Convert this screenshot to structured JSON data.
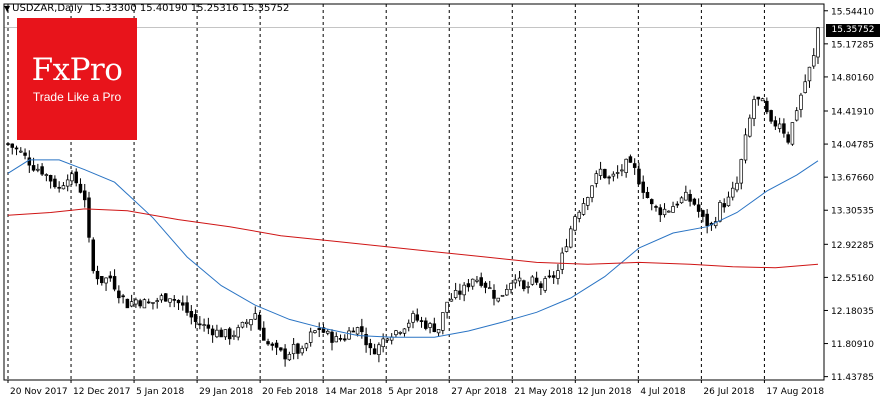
{
  "header": {
    "symbol": "USDZAR,Daily",
    "ohlc": "15.33300 15.40190 15.25316 15.35752"
  },
  "logo": {
    "brand": "FxPro",
    "tagline": "Trade Like a Pro"
  },
  "price_label": "15.35752",
  "chart_data": {
    "type": "candlestick",
    "title": "USDZAR,Daily",
    "y_ticks": [
      "15.54410",
      "15.17285",
      "14.80160",
      "14.41910",
      "14.04785",
      "13.67660",
      "13.30535",
      "12.92285",
      "12.55160",
      "12.18035",
      "11.80910",
      "11.43785"
    ],
    "x_ticks": [
      "20 Nov 2017",
      "12 Dec 2017",
      "5 Jan 2018",
      "29 Jan 2018",
      "20 Feb 2018",
      "14 Mar 2018",
      "5 Apr 2018",
      "27 Apr 2018",
      "21 May 2018",
      "12 Jun 2018",
      "4 Jul 2018",
      "26 Jul 2018",
      "17 Aug 2018"
    ],
    "ylim": [
      11.4,
      15.62
    ],
    "last_price": 15.35752,
    "close_points": [
      [
        0,
        14.05
      ],
      [
        3,
        13.95
      ],
      [
        6,
        13.8
      ],
      [
        8,
        13.75
      ],
      [
        10,
        13.65
      ],
      [
        12,
        13.55
      ],
      [
        14,
        13.7
      ],
      [
        16,
        13.62
      ],
      [
        18,
        13.45
      ],
      [
        19,
        12.95
      ],
      [
        20,
        12.62
      ],
      [
        22,
        12.52
      ],
      [
        24,
        12.55
      ],
      [
        26,
        12.38
      ],
      [
        28,
        12.25
      ],
      [
        30,
        12.3
      ],
      [
        33,
        12.25
      ],
      [
        36,
        12.32
      ],
      [
        38,
        12.35
      ],
      [
        41,
        12.22
      ],
      [
        44,
        12.05
      ],
      [
        47,
        11.98
      ],
      [
        50,
        11.92
      ],
      [
        52,
        11.9
      ],
      [
        54,
        11.95
      ],
      [
        56,
        12.05
      ],
      [
        58,
        12.15
      ],
      [
        59,
        11.98
      ],
      [
        61,
        11.8
      ],
      [
        63,
        11.72
      ],
      [
        65,
        11.68
      ],
      [
        67,
        11.75
      ],
      [
        69,
        11.7
      ],
      [
        71,
        11.9
      ],
      [
        73,
        11.98
      ],
      [
        75,
        11.9
      ],
      [
        77,
        11.85
      ],
      [
        79,
        11.88
      ],
      [
        81,
        12.0
      ],
      [
        83,
        11.95
      ],
      [
        85,
        11.72
      ],
      [
        87,
        11.78
      ],
      [
        89,
        11.92
      ],
      [
        91,
        11.95
      ],
      [
        93,
        12.02
      ],
      [
        95,
        12.1
      ],
      [
        97,
        12.05
      ],
      [
        99,
        12.0
      ],
      [
        101,
        11.98
      ],
      [
        103,
        12.28
      ],
      [
        105,
        12.35
      ],
      [
        107,
        12.42
      ],
      [
        109,
        12.55
      ],
      [
        111,
        12.52
      ],
      [
        113,
        12.42
      ],
      [
        115,
        12.3
      ],
      [
        117,
        12.45
      ],
      [
        119,
        12.58
      ],
      [
        121,
        12.4
      ],
      [
        123,
        12.5
      ],
      [
        125,
        12.45
      ],
      [
        127,
        12.52
      ],
      [
        129,
        12.62
      ],
      [
        131,
        12.95
      ],
      [
        133,
        13.25
      ],
      [
        135,
        13.4
      ],
      [
        137,
        13.6
      ],
      [
        139,
        13.75
      ],
      [
        141,
        13.65
      ],
      [
        143,
        13.72
      ],
      [
        145,
        13.82
      ],
      [
        147,
        13.75
      ],
      [
        149,
        13.55
      ],
      [
        151,
        13.35
      ],
      [
        153,
        13.3
      ],
      [
        155,
        13.32
      ],
      [
        157,
        13.4
      ],
      [
        159,
        13.45
      ],
      [
        161,
        13.38
      ],
      [
        163,
        13.2
      ],
      [
        165,
        13.12
      ],
      [
        167,
        13.35
      ],
      [
        169,
        13.42
      ],
      [
        171,
        13.6
      ],
      [
        173,
        14.1
      ],
      [
        175,
        14.55
      ],
      [
        177,
        14.5
      ],
      [
        179,
        14.25
      ],
      [
        181,
        14.3
      ],
      [
        183,
        14.1
      ],
      [
        185,
        14.45
      ],
      [
        187,
        14.75
      ],
      [
        189,
        15.02
      ],
      [
        190,
        15.35
      ]
    ],
    "series": [
      {
        "name": "",
        "color": "#2a74c4",
        "points": [
          [
            0,
            13.72
          ],
          [
            5,
            13.87
          ],
          [
            12,
            13.87
          ],
          [
            18,
            13.76
          ],
          [
            25,
            13.62
          ],
          [
            34,
            13.22
          ],
          [
            42,
            12.78
          ],
          [
            50,
            12.46
          ],
          [
            58,
            12.24
          ],
          [
            66,
            12.08
          ],
          [
            74,
            11.98
          ],
          [
            82,
            11.9
          ],
          [
            90,
            11.88
          ],
          [
            100,
            11.88
          ],
          [
            108,
            11.95
          ],
          [
            116,
            12.05
          ],
          [
            124,
            12.16
          ],
          [
            132,
            12.32
          ],
          [
            140,
            12.56
          ],
          [
            148,
            12.88
          ],
          [
            156,
            13.05
          ],
          [
            164,
            13.12
          ],
          [
            171,
            13.28
          ],
          [
            178,
            13.52
          ],
          [
            185,
            13.7
          ],
          [
            190,
            13.86
          ]
        ]
      },
      {
        "name": "",
        "color": "#cf1515",
        "points": [
          [
            0,
            13.25
          ],
          [
            10,
            13.28
          ],
          [
            18,
            13.32
          ],
          [
            28,
            13.3
          ],
          [
            40,
            13.2
          ],
          [
            52,
            13.12
          ],
          [
            64,
            13.02
          ],
          [
            76,
            12.96
          ],
          [
            88,
            12.9
          ],
          [
            100,
            12.84
          ],
          [
            112,
            12.78
          ],
          [
            124,
            12.72
          ],
          [
            136,
            12.7
          ],
          [
            148,
            12.72
          ],
          [
            160,
            12.7
          ],
          [
            170,
            12.67
          ],
          [
            180,
            12.66
          ],
          [
            190,
            12.7
          ]
        ]
      }
    ]
  }
}
